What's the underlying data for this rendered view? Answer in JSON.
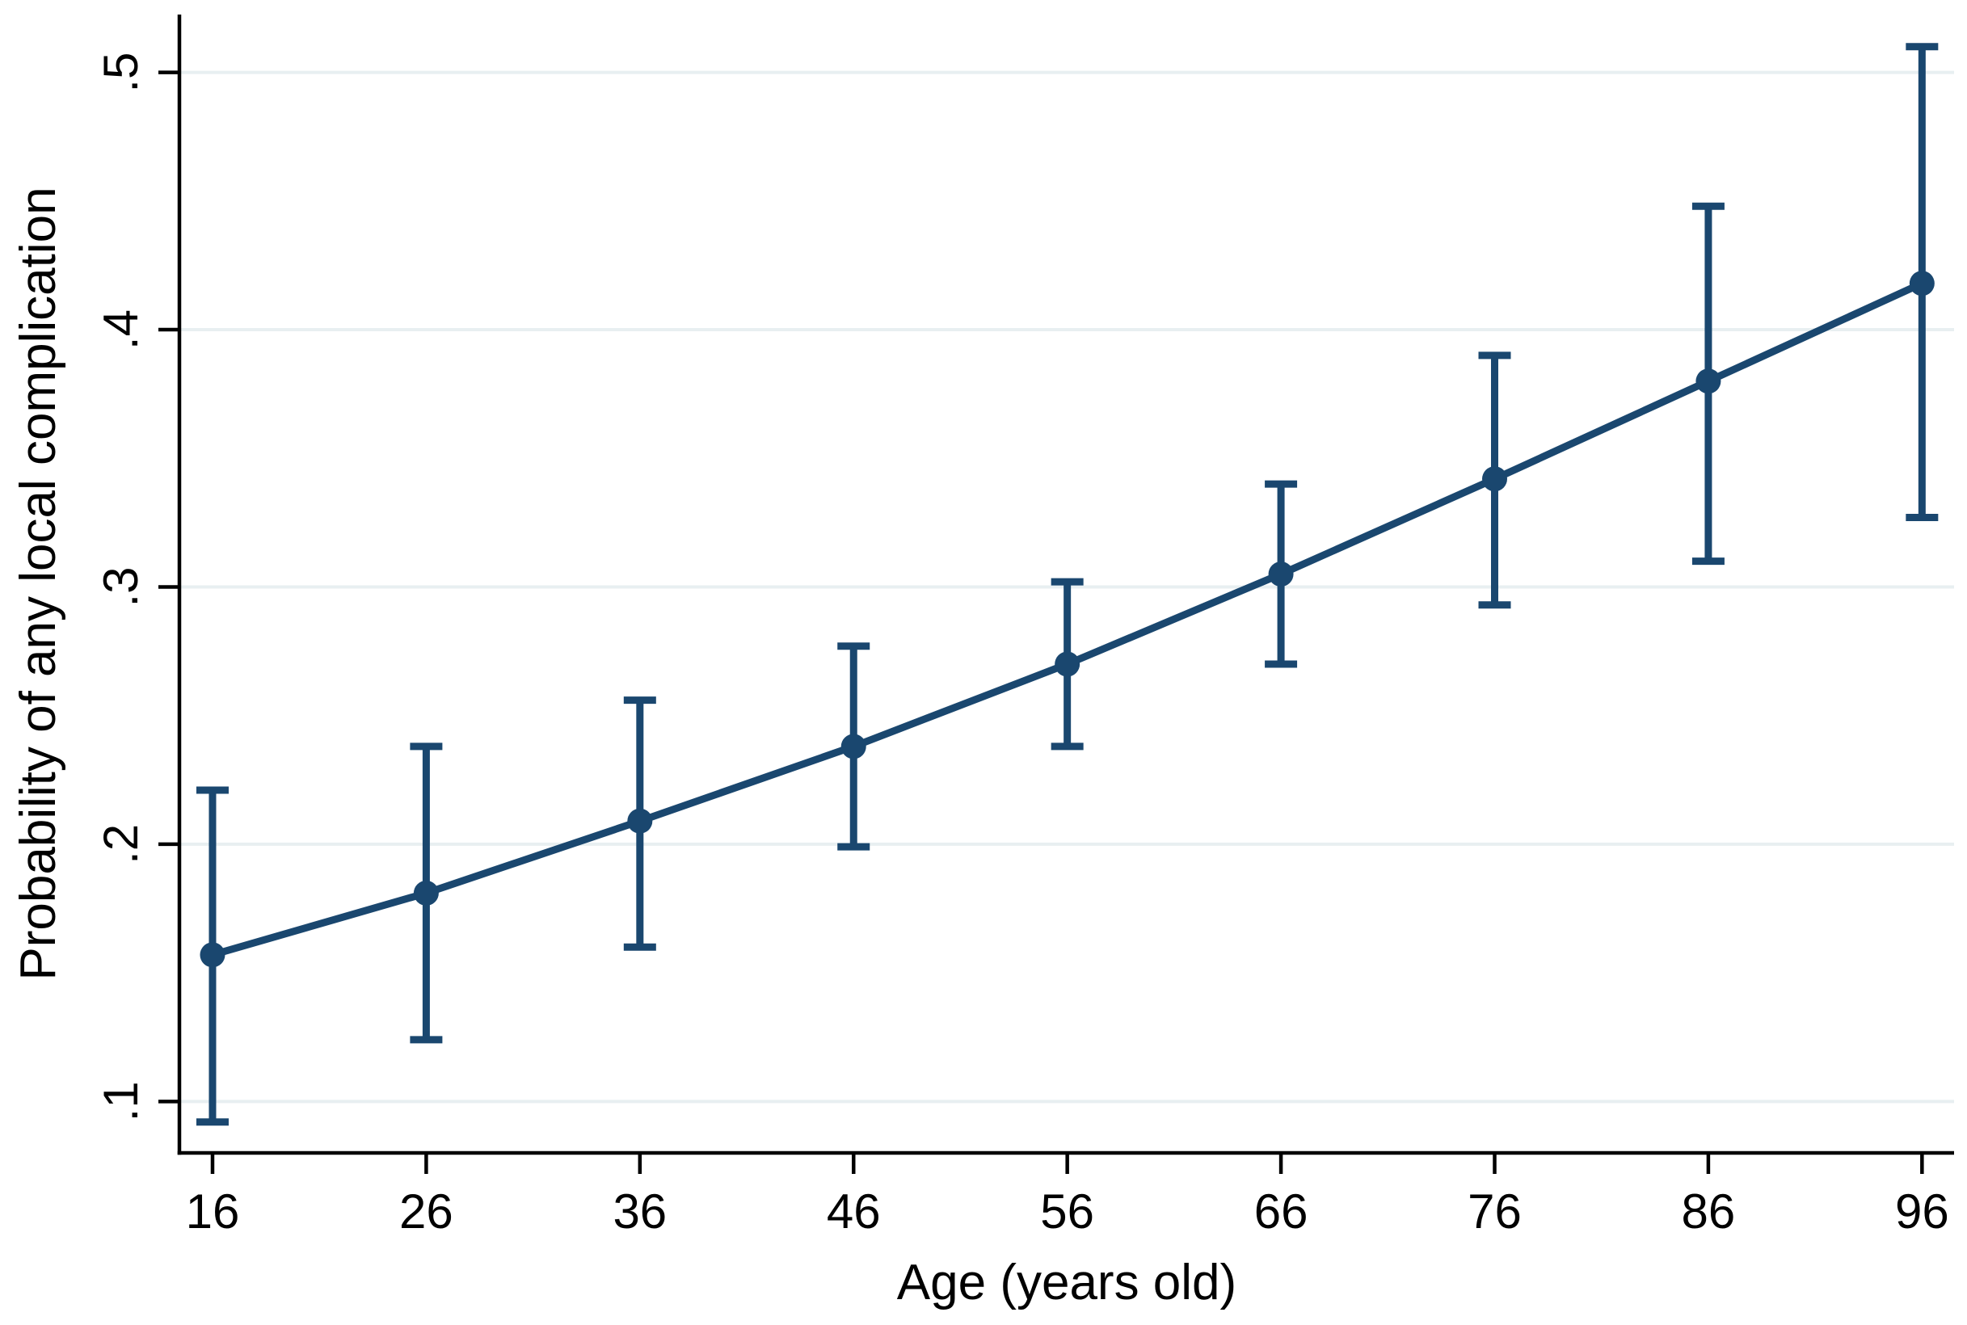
{
  "chart_data": {
    "type": "line",
    "title": "",
    "xlabel": "Age (years old)",
    "ylabel": "Probability of any local complication",
    "x": [
      16,
      26,
      36,
      46,
      56,
      66,
      76,
      86,
      96
    ],
    "values": [
      0.157,
      0.181,
      0.209,
      0.238,
      0.27,
      0.305,
      0.342,
      0.38,
      0.418
    ],
    "ci_lower": [
      0.092,
      0.124,
      0.16,
      0.199,
      0.238,
      0.27,
      0.293,
      0.31,
      0.327
    ],
    "ci_upper": [
      0.221,
      0.238,
      0.256,
      0.277,
      0.302,
      0.34,
      0.39,
      0.448,
      0.51
    ],
    "x_tick_labels": [
      "16",
      "26",
      "36",
      "46",
      "56",
      "66",
      "76",
      "86",
      "96"
    ],
    "y_tick_labels": [
      ".1",
      ".2",
      ".3",
      ".4",
      ".5"
    ],
    "y_tick_values": [
      0.1,
      0.2,
      0.3,
      0.4,
      0.5
    ],
    "xlim": [
      14.45,
      97.5
    ],
    "ylim": [
      0.08,
      0.5225
    ],
    "grid": "horizontal",
    "legend": "none",
    "y_tick_label_orientation": "rotated-90-ccw",
    "marker": "filled-circle",
    "error_bars": "capped",
    "colors": {
      "series": "#1a476f",
      "grid": "#e8eff1",
      "axis": "#000000",
      "background": "#ffffff"
    }
  }
}
